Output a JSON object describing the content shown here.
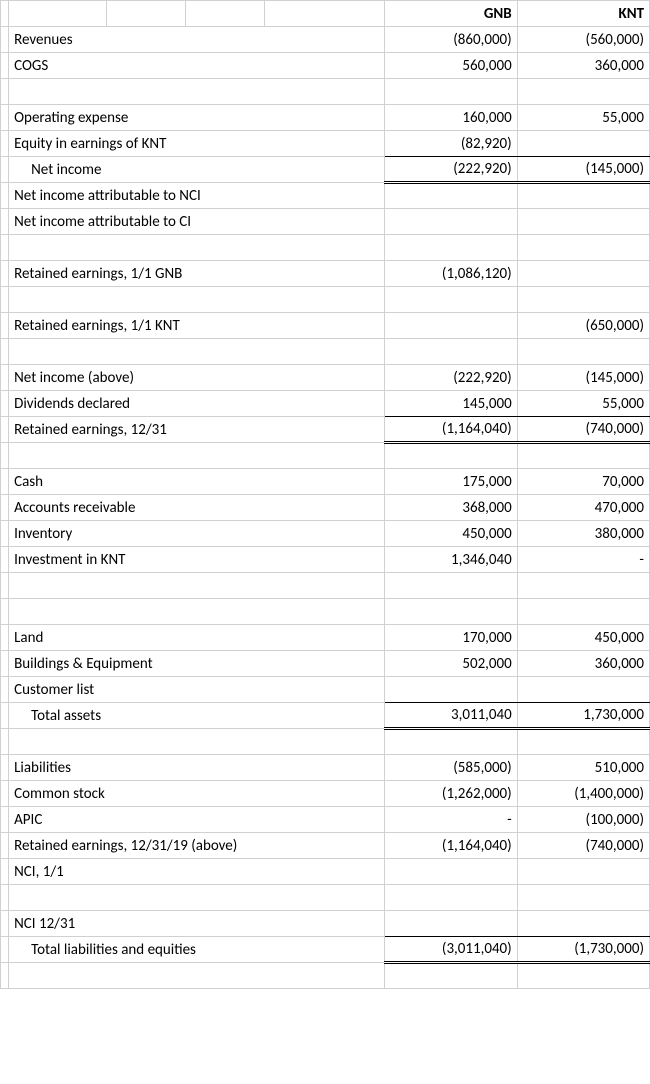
{
  "headers": {
    "gnb": "GNB",
    "knt": "KNT"
  },
  "rows": [
    {
      "label": "Revenues",
      "gnb": "(860,000)",
      "knt": "(560,000)"
    },
    {
      "label": "COGS",
      "gnb": "560,000",
      "knt": "360,000"
    },
    {
      "blank": true
    },
    {
      "label": "Operating expense",
      "gnb": "160,000",
      "knt": "55,000"
    },
    {
      "label": "Equity in earnings of KNT",
      "gnb": "(82,920)",
      "knt": "",
      "gnb_style": "bottom-line",
      "knt_style": "bottom-line"
    },
    {
      "label": "Net income",
      "indent": true,
      "gnb": "(222,920)",
      "knt": "(145,000)",
      "gnb_style": "dbl-bottom",
      "knt_style": "dbl-bottom"
    },
    {
      "label": "Net income attributable to NCI"
    },
    {
      "label": "Net income attributable to CI"
    },
    {
      "blank": true
    },
    {
      "label": "Retained earnings, 1/1 GNB",
      "gnb": "(1,086,120)"
    },
    {
      "blank": true
    },
    {
      "label": "Retained earnings, 1/1 KNT",
      "knt": "(650,000)"
    },
    {
      "blank": true
    },
    {
      "label": "Net income (above)",
      "gnb": "(222,920)",
      "knt": "(145,000)"
    },
    {
      "label": "Dividends declared",
      "gnb": "145,000",
      "knt": "55,000",
      "gnb_style": "bottom-line",
      "knt_style": "bottom-line"
    },
    {
      "label": "Retained earnings, 12/31",
      "gnb": "(1,164,040)",
      "knt": "(740,000)",
      "gnb_style": "dbl-bottom",
      "knt_style": "dbl-bottom"
    },
    {
      "blank": true
    },
    {
      "label": "Cash",
      "gnb": "175,000",
      "knt": "70,000"
    },
    {
      "label": "Accounts receivable",
      "gnb": "368,000",
      "knt": "470,000"
    },
    {
      "label": "Inventory",
      "gnb": "450,000",
      "knt": "380,000"
    },
    {
      "label": "Investment in KNT",
      "gnb": "1,346,040",
      "knt": "-"
    },
    {
      "blank": true
    },
    {
      "blank": true
    },
    {
      "label": "Land",
      "gnb": "170,000",
      "knt": "450,000"
    },
    {
      "label": "Buildings & Equipment",
      "gnb": "502,000",
      "knt": "360,000"
    },
    {
      "label": "Customer list",
      "gnb_style": "bottom-line",
      "knt_style": "bottom-line"
    },
    {
      "label": "Total assets",
      "indent": true,
      "gnb": "3,011,040",
      "knt": "1,730,000",
      "gnb_style": "dbl-bottom",
      "knt_style": "dbl-bottom"
    },
    {
      "blank": true
    },
    {
      "label": "Liabilities",
      "gnb": "(585,000)",
      "knt": "510,000"
    },
    {
      "label": "Common stock",
      "gnb": "(1,262,000)",
      "knt": "(1,400,000)"
    },
    {
      "label": "APIC",
      "gnb": "-",
      "knt": "(100,000)"
    },
    {
      "label": "Retained earnings, 12/31/19 (above)",
      "gnb": "(1,164,040)",
      "knt": "(740,000)"
    },
    {
      "label": "NCI, 1/1"
    },
    {
      "blank": true
    },
    {
      "label": "NCI 12/31",
      "gnb_style": "bottom-line",
      "knt_style": "bottom-line"
    },
    {
      "label": "Total liabilities and equities",
      "indent": true,
      "gnb": "(3,011,040)",
      "knt": "(1,730,000)",
      "gnb_style": "dbl-bottom",
      "knt_style": "dbl-bottom"
    },
    {
      "blank": true
    }
  ]
}
